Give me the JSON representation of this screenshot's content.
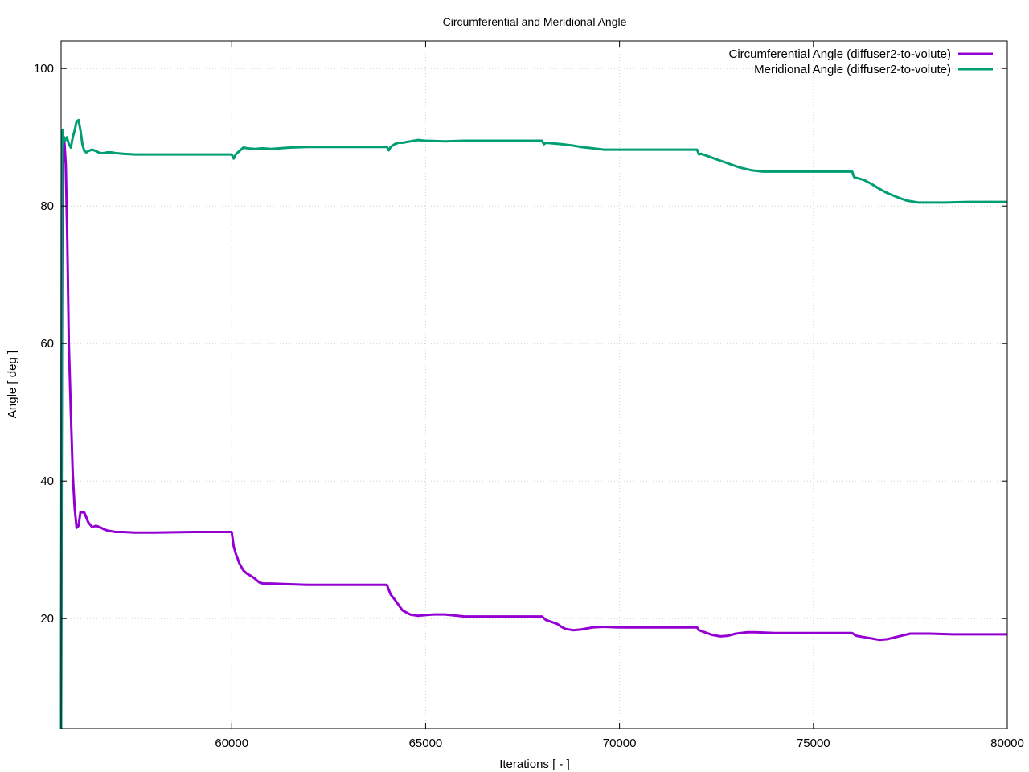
{
  "chart_data": {
    "type": "line",
    "title": "Circumferential and Meridional Angle",
    "xlabel": "Iterations [ - ]",
    "ylabel": "Angle [ deg ]",
    "xlim": [
      55600,
      80000
    ],
    "ylim": [
      4,
      104
    ],
    "xticks": [
      60000,
      65000,
      70000,
      75000,
      80000
    ],
    "yticks": [
      20,
      40,
      60,
      80,
      100
    ],
    "grid": true,
    "legend_position": "top-right",
    "series": [
      {
        "name": "Circumferential Angle (diffuser2-to-volute)",
        "color": "#9400d3",
        "x": [
          55600,
          55620,
          55640,
          55660,
          55690,
          55720,
          55760,
          55800,
          55850,
          55900,
          55950,
          56000,
          56050,
          56100,
          56200,
          56300,
          56400,
          56500,
          56600,
          56700,
          56800,
          57000,
          57200,
          57500,
          58000,
          59000,
          60000,
          60050,
          60100,
          60200,
          60300,
          60400,
          60500,
          60600,
          60700,
          60800,
          61000,
          61500,
          62000,
          63000,
          64000,
          64100,
          64200,
          64300,
          64400,
          64600,
          64800,
          65000,
          65200,
          65500,
          66000,
          66200,
          67000,
          68000,
          68100,
          68200,
          68400,
          68500,
          68600,
          68800,
          69000,
          69300,
          69600,
          70000,
          71000,
          72000,
          72050,
          72200,
          72400,
          72600,
          72800,
          73000,
          73300,
          73500,
          74000,
          75000,
          76000,
          76100,
          76300,
          76500,
          76700,
          76900,
          77200,
          77500,
          78000,
          78600,
          79000,
          80000
        ],
        "values": [
          6,
          60,
          88,
          90,
          89,
          86,
          75,
          60,
          50,
          41,
          36,
          33.2,
          33.5,
          35.5,
          35.4,
          34,
          33.3,
          33.5,
          33.3,
          33,
          32.8,
          32.6,
          32.6,
          32.5,
          32.5,
          32.6,
          32.6,
          30.5,
          29.5,
          28,
          27,
          26.5,
          26.2,
          25.8,
          25.3,
          25.1,
          25.1,
          25,
          24.9,
          24.9,
          24.9,
          23.5,
          22.8,
          22,
          21.2,
          20.6,
          20.4,
          20.5,
          20.6,
          20.6,
          20.3,
          20.3,
          20.3,
          20.3,
          19.8,
          19.6,
          19.2,
          18.8,
          18.5,
          18.3,
          18.4,
          18.7,
          18.8,
          18.7,
          18.7,
          18.7,
          18.3,
          18,
          17.6,
          17.4,
          17.5,
          17.8,
          18,
          18,
          17.9,
          17.9,
          17.9,
          17.5,
          17.3,
          17.1,
          16.9,
          17,
          17.4,
          17.8,
          17.8,
          17.7,
          17.7,
          17.7
        ]
      },
      {
        "name": "Meridional Angle (diffuser2-to-volute)",
        "color": "#009e73",
        "x": [
          55600,
          55620,
          55640,
          55660,
          55680,
          55700,
          55720,
          55750,
          55800,
          55850,
          55900,
          55950,
          56000,
          56050,
          56100,
          56150,
          56200,
          56250,
          56300,
          56400,
          56500,
          56600,
          56700,
          56800,
          56900,
          57000,
          57200,
          57500,
          58000,
          59000,
          60000,
          60050,
          60100,
          60200,
          60300,
          60400,
          60600,
          60800,
          61000,
          61500,
          62000,
          63000,
          64000,
          64050,
          64100,
          64200,
          64300,
          64400,
          64600,
          64800,
          65000,
          65500,
          66000,
          67000,
          68000,
          68050,
          68100,
          68300,
          68500,
          68800,
          69000,
          69300,
          69600,
          70000,
          71000,
          72000,
          72050,
          72100,
          72300,
          72500,
          72700,
          72900,
          73100,
          73400,
          73700,
          74000,
          75000,
          76000,
          76050,
          76100,
          76300,
          76500,
          76700,
          76900,
          77200,
          77400,
          77700,
          78000,
          78400,
          79000,
          80000
        ],
        "values": [
          4,
          88,
          91,
          89.5,
          90,
          89.5,
          89.7,
          90,
          89,
          88.5,
          90,
          91,
          92.3,
          92.5,
          91,
          89,
          88,
          87.8,
          88,
          88.2,
          88,
          87.7,
          87.7,
          87.8,
          87.8,
          87.7,
          87.6,
          87.5,
          87.5,
          87.5,
          87.5,
          86.9,
          87.5,
          88,
          88.5,
          88.4,
          88.3,
          88.4,
          88.3,
          88.5,
          88.6,
          88.6,
          88.6,
          88.1,
          88.6,
          89,
          89.2,
          89.2,
          89.4,
          89.6,
          89.5,
          89.4,
          89.5,
          89.5,
          89.5,
          89,
          89.2,
          89.1,
          89,
          88.8,
          88.6,
          88.4,
          88.2,
          88.2,
          88.2,
          88.2,
          87.5,
          87.6,
          87.2,
          86.8,
          86.4,
          86,
          85.6,
          85.2,
          85,
          85,
          85,
          85,
          84.2,
          84.1,
          83.8,
          83.2,
          82.5,
          81.9,
          81.2,
          80.8,
          80.5,
          80.5,
          80.5,
          80.6,
          80.6
        ]
      }
    ]
  }
}
